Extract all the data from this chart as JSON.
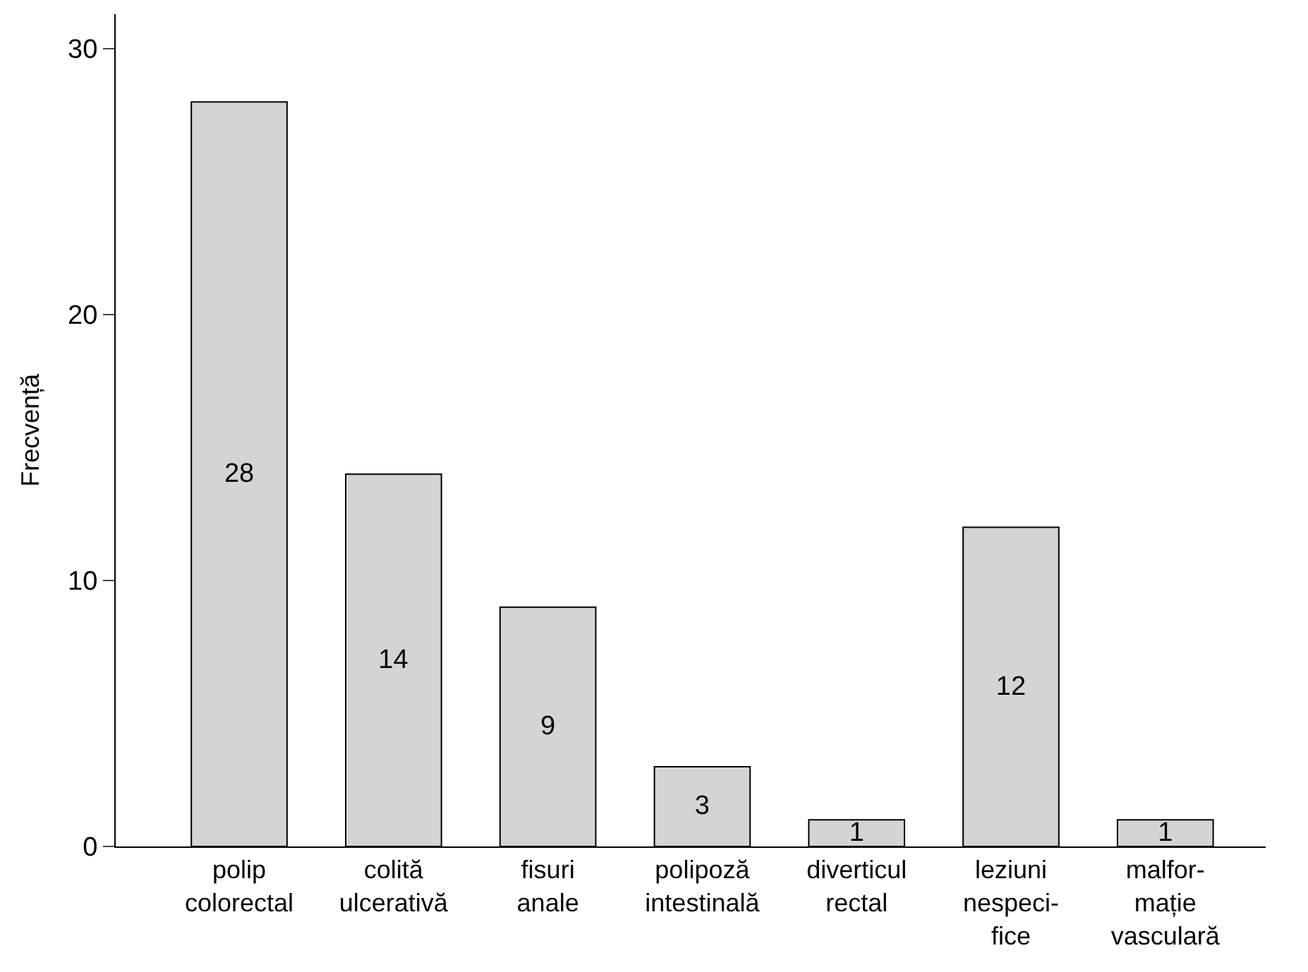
{
  "chart_data": {
    "type": "bar",
    "ylabel": "Frecvență",
    "categories": [
      "polip\ncolorectal",
      "colită\nulcerativă",
      "fisuri\nanale",
      "polipoză\nintestinală",
      "diverticul\nrectal",
      "leziuni\nnespeci-\nfice",
      "malfor-\nmație\nvasculară"
    ],
    "values": [
      28,
      14,
      9,
      3,
      1,
      12,
      1
    ],
    "color": "#d4d4d4",
    "ylim": [
      0,
      31.3
    ],
    "yticks": [
      0,
      10,
      20,
      30
    ],
    "data_labels": true
  }
}
